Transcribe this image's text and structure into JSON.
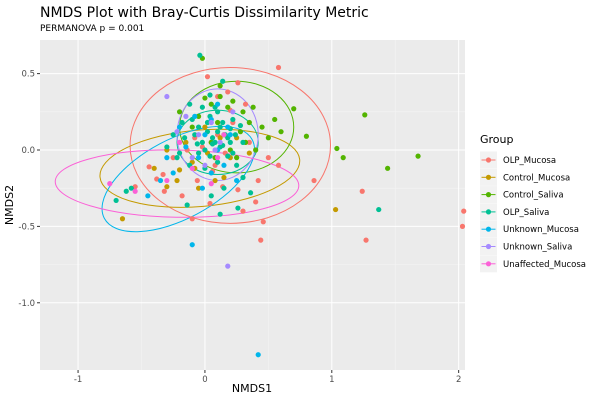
{
  "chart_data": {
    "type": "scatter",
    "title": "NMDS Plot with Bray-Curtis Dissimilarity Metric",
    "subtitle": "PERMANOVA p = 0.001",
    "xlabel": "NMDS1",
    "ylabel": "NMDS2",
    "xlim": [
      -1.3,
      2.05
    ],
    "ylim": [
      -1.44,
      0.72
    ],
    "x_ticks": [
      -1,
      0,
      1,
      2
    ],
    "x_tick_labels": [
      "-1",
      "0",
      "1",
      "2"
    ],
    "y_ticks": [
      -1.0,
      -0.5,
      0.0,
      0.5
    ],
    "y_tick_labels": [
      "-1.0",
      "-0.5",
      "0.0",
      "0.5"
    ],
    "grid": true,
    "legend_title": "Group",
    "legend_position": "right",
    "series": [
      {
        "name": "OLP_Mucosa",
        "color": "#F8766D",
        "points": [
          [
            0.02,
            0.48
          ],
          [
            0.26,
            0.44
          ],
          [
            0.58,
            0.54
          ],
          [
            0.18,
            0.38
          ],
          [
            0.32,
            0.3
          ],
          [
            0.1,
            0.35
          ],
          [
            0.22,
            0.18
          ],
          [
            0.35,
            0.05
          ],
          [
            0.5,
            -0.05
          ],
          [
            0.42,
            -0.2
          ],
          [
            0.58,
            -0.1
          ],
          [
            0.86,
            -0.2
          ],
          [
            1.24,
            -0.27
          ],
          [
            2.04,
            -0.4
          ],
          [
            2.03,
            -0.5
          ],
          [
            1.27,
            -0.59
          ],
          [
            0.44,
            -0.59
          ],
          [
            0.3,
            -0.4
          ],
          [
            0.14,
            -0.24
          ],
          [
            -0.06,
            -0.2
          ],
          [
            -0.38,
            -0.19
          ],
          [
            -0.32,
            -0.27
          ],
          [
            -0.1,
            -0.45
          ],
          [
            -0.18,
            -0.3
          ],
          [
            -0.55,
            -0.24
          ],
          [
            -0.44,
            -0.11
          ],
          [
            0.26,
            -0.26
          ],
          [
            0.4,
            -0.34
          ],
          [
            0.08,
            -0.1
          ],
          [
            -0.08,
            0.08
          ],
          [
            0.1,
            0.1
          ],
          [
            -0.02,
            0.02
          ],
          [
            0.16,
            -0.02
          ],
          [
            0.04,
            -0.35
          ],
          [
            -0.25,
            -0.05
          ],
          [
            0.46,
            -0.47
          ],
          [
            -0.33,
            -0.16
          ],
          [
            0.2,
            0.26
          ],
          [
            0.06,
            -0.14
          ],
          [
            -0.14,
            0.0
          ]
        ]
      },
      {
        "name": "Control_Mucosa",
        "color": "#C49A00",
        "points": [
          [
            -0.65,
            -0.45
          ],
          [
            -0.3,
            -0.24
          ],
          [
            -0.2,
            -0.13
          ],
          [
            -0.1,
            -0.08
          ],
          [
            0.02,
            -0.02
          ],
          [
            0.12,
            0.08
          ],
          [
            0.2,
            -0.05
          ],
          [
            1.03,
            -0.39
          ],
          [
            -0.4,
            -0.12
          ],
          [
            -0.05,
            -0.25
          ],
          [
            0.08,
            -0.2
          ],
          [
            -0.15,
            0.05
          ],
          [
            0.25,
            0.08
          ],
          [
            0.15,
            -0.18
          ],
          [
            -0.3,
            0.0
          ],
          [
            0.35,
            -0.02
          ],
          [
            -0.22,
            -0.2
          ],
          [
            0.0,
            0.15
          ],
          [
            0.05,
            0.05
          ],
          [
            -0.08,
            -0.12
          ]
        ]
      },
      {
        "name": "Control_Saliva",
        "color": "#53B400",
        "points": [
          [
            1.26,
            0.23
          ],
          [
            1.04,
            0.01
          ],
          [
            1.09,
            -0.05
          ],
          [
            1.44,
            -0.12
          ],
          [
            1.68,
            -0.04
          ],
          [
            0.8,
            0.09
          ],
          [
            0.7,
            0.27
          ],
          [
            0.6,
            0.12
          ],
          [
            0.45,
            0.15
          ],
          [
            0.3,
            0.25
          ],
          [
            -0.02,
            0.6
          ],
          [
            0.12,
            0.42
          ],
          [
            0.18,
            0.28
          ],
          [
            0.1,
            0.18
          ],
          [
            0.28,
            0.12
          ],
          [
            0.22,
            0.32
          ],
          [
            0.35,
            0.18
          ],
          [
            0.05,
            0.3
          ],
          [
            -0.05,
            0.22
          ],
          [
            0.4,
            0.0
          ],
          [
            0.5,
            0.08
          ],
          [
            0.15,
            0.1
          ],
          [
            0.25,
            -0.05
          ],
          [
            -0.1,
            0.15
          ],
          [
            -0.2,
            0.25
          ],
          [
            0.05,
            0.05
          ],
          [
            0.32,
            0.05
          ],
          [
            0.2,
            0.0
          ],
          [
            0.08,
            -0.05
          ],
          [
            0.38,
            0.28
          ],
          [
            0.55,
            0.2
          ],
          [
            0.0,
            0.34
          ],
          [
            0.12,
            0.35
          ]
        ]
      },
      {
        "name": "OLP_Saliva",
        "color": "#00C094",
        "points": [
          [
            -0.04,
            0.62
          ],
          [
            0.14,
            0.45
          ],
          [
            0.04,
            0.36
          ],
          [
            -0.12,
            0.3
          ],
          [
            -0.1,
            0.2
          ],
          [
            0.08,
            0.28
          ],
          [
            0.14,
            0.18
          ],
          [
            0.2,
            0.14
          ],
          [
            0.02,
            0.12
          ],
          [
            -0.02,
            0.05
          ],
          [
            0.06,
            0.04
          ],
          [
            -0.05,
            -0.02
          ],
          [
            0.12,
            0.02
          ],
          [
            0.22,
            -0.02
          ],
          [
            0.18,
            0.08
          ],
          [
            0.3,
            0.05
          ],
          [
            -0.18,
            0.18
          ],
          [
            -0.25,
            0.1
          ],
          [
            -0.3,
            0.02
          ],
          [
            -0.22,
            -0.05
          ],
          [
            -0.12,
            -0.1
          ],
          [
            0.0,
            -0.12
          ],
          [
            0.1,
            -0.08
          ],
          [
            0.25,
            -0.1
          ],
          [
            0.15,
            -0.25
          ],
          [
            0.12,
            -0.42
          ],
          [
            0.26,
            -0.38
          ],
          [
            0.05,
            -0.3
          ],
          [
            -0.14,
            -0.36
          ],
          [
            -0.58,
            -0.25
          ],
          [
            -0.62,
            -0.27
          ],
          [
            -0.7,
            -0.33
          ],
          [
            -0.05,
            0.15
          ],
          [
            0.04,
            0.22
          ],
          [
            -0.08,
            0.1
          ],
          [
            0.1,
            0.12
          ],
          [
            0.16,
            0.1
          ],
          [
            0.22,
            0.2
          ],
          [
            0.28,
            0.16
          ],
          [
            -0.16,
            0.08
          ],
          [
            -0.2,
            -0.02
          ],
          [
            0.02,
            0.18
          ],
          [
            0.06,
            0.08
          ],
          [
            0.1,
            0.25
          ],
          [
            -0.02,
            0.28
          ],
          [
            0.08,
            0.05
          ],
          [
            0.14,
            0.03
          ],
          [
            0.18,
            -0.04
          ],
          [
            -0.06,
            0.04
          ],
          [
            0.0,
            0.0
          ],
          [
            0.04,
            -0.04
          ],
          [
            0.2,
            0.05
          ],
          [
            0.12,
            0.15
          ],
          [
            0.24,
            0.1
          ],
          [
            1.37,
            -0.39
          ],
          [
            0.36,
            -0.28
          ],
          [
            0.3,
            -0.18
          ]
        ]
      },
      {
        "name": "Unknown_Mucosa",
        "color": "#00B6EB",
        "points": [
          [
            0.42,
            -1.34
          ],
          [
            -0.1,
            -0.62
          ],
          [
            -0.45,
            -0.3
          ],
          [
            -0.25,
            -0.15
          ],
          [
            -0.05,
            -0.05
          ],
          [
            0.1,
            0.0
          ],
          [
            0.05,
            -0.15
          ],
          [
            -0.15,
            0.02
          ],
          [
            -0.35,
            -0.2
          ],
          [
            0.0,
            0.1
          ],
          [
            -0.08,
            0.22
          ],
          [
            0.15,
            -0.1
          ],
          [
            0.2,
            0.1
          ],
          [
            -0.2,
            0.15
          ],
          [
            0.1,
            0.3
          ],
          [
            -0.02,
            -0.25
          ],
          [
            0.25,
            -0.2
          ],
          [
            -0.3,
            -0.05
          ],
          [
            0.05,
            0.2
          ],
          [
            0.18,
            0.15
          ]
        ]
      },
      {
        "name": "Unknown_Saliva",
        "color": "#A58AFF",
        "points": [
          [
            0.18,
            -0.76
          ],
          [
            -0.3,
            0.35
          ],
          [
            -0.15,
            0.22
          ],
          [
            -0.05,
            0.1
          ],
          [
            0.05,
            0.18
          ],
          [
            0.12,
            0.05
          ],
          [
            -0.1,
            -0.05
          ],
          [
            0.22,
            0.25
          ],
          [
            0.0,
            -0.1
          ],
          [
            -0.22,
            0.12
          ],
          [
            0.08,
            0.0
          ]
        ]
      },
      {
        "name": "Unaffected_Mucosa",
        "color": "#FB61D7",
        "points": [
          [
            -0.75,
            -0.22
          ],
          [
            -0.55,
            -0.27
          ],
          [
            -0.3,
            -0.2
          ],
          [
            -0.1,
            -0.12
          ],
          [
            0.05,
            -0.22
          ],
          [
            0.15,
            0.1
          ],
          [
            -0.2,
            0.05
          ],
          [
            0.1,
            -0.05
          ]
        ]
      }
    ],
    "ellipses": [
      {
        "series": "OLP_Mucosa",
        "center": [
          0.2,
          0.03
        ],
        "semi_axes": [
          0.79,
          0.51
        ],
        "angle_deg": 0
      },
      {
        "series": "Control_Mucosa",
        "center": [
          -0.04,
          -0.12
        ],
        "semi_axes": [
          0.79,
          0.25
        ],
        "angle_deg": 5
      },
      {
        "series": "Control_Saliva",
        "center": [
          0.25,
          0.15
        ],
        "semi_axes": [
          0.45,
          0.3
        ],
        "angle_deg": 0
      },
      {
        "series": "OLP_Saliva",
        "center": [
          0.1,
          0.05
        ],
        "semi_axes": [
          0.32,
          0.21
        ],
        "angle_deg": 0
      },
      {
        "series": "Unknown_Mucosa",
        "center": [
          -0.21,
          -0.19
        ],
        "semi_axes": [
          0.66,
          0.26
        ],
        "angle_deg": 28
      },
      {
        "series": "Unknown_Saliva",
        "center": [
          0.1,
          0.1
        ],
        "semi_axes": [
          0.32,
          0.3
        ],
        "angle_deg": 0
      },
      {
        "series": "Unaffected_Mucosa",
        "center": [
          -0.22,
          -0.22
        ],
        "semi_axes": [
          0.96,
          0.22
        ],
        "angle_deg": -1
      }
    ]
  }
}
